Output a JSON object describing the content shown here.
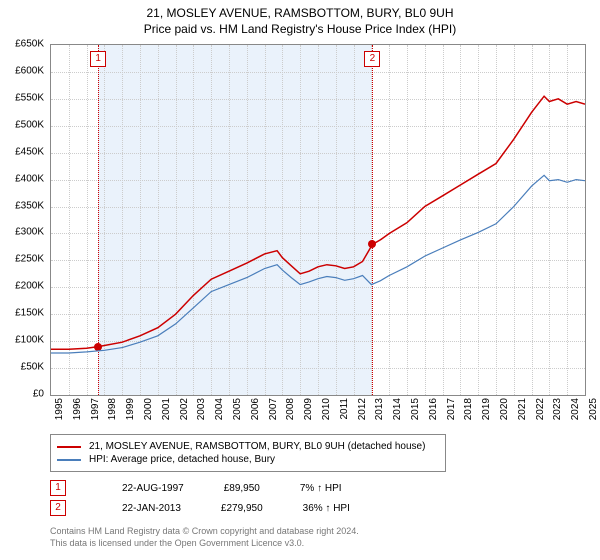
{
  "title_line1": "21, MOSLEY AVENUE, RAMSBOTTOM, BURY, BL0 9UH",
  "title_line2": "Price paid vs. HM Land Registry's House Price Index (HPI)",
  "chart": {
    "type": "line",
    "background_color": "#ffffff",
    "border_color": "#888888",
    "grid_color": "#cccccc",
    "grid_dotted": true,
    "plot_background_band": {
      "from_year": 1997.65,
      "to_year": 2013.06,
      "color": "#eaf2fb"
    },
    "x": {
      "min": 1995,
      "max": 2025,
      "tick_step": 1,
      "tick_rotation_deg": -90,
      "font_size": 10
    },
    "y": {
      "min": 0,
      "max": 650000,
      "tick_step": 50000,
      "format_prefix": "£",
      "format_suffix": "K",
      "format_divisor": 1000,
      "font_size": 10
    },
    "series": [
      {
        "name": "21, MOSLEY AVENUE, RAMSBOTTOM, BURY, BL0 9UH (detached house)",
        "color": "#cc0000",
        "line_width": 1.5,
        "points": [
          [
            1995,
            85000
          ],
          [
            1996,
            85000
          ],
          [
            1997,
            87000
          ],
          [
            1997.65,
            89950
          ],
          [
            1998,
            92000
          ],
          [
            1999,
            98000
          ],
          [
            2000,
            110000
          ],
          [
            2001,
            125000
          ],
          [
            2002,
            150000
          ],
          [
            2003,
            185000
          ],
          [
            2004,
            215000
          ],
          [
            2005,
            230000
          ],
          [
            2006,
            245000
          ],
          [
            2007,
            262000
          ],
          [
            2007.7,
            268000
          ],
          [
            2008,
            255000
          ],
          [
            2008.5,
            240000
          ],
          [
            2009,
            225000
          ],
          [
            2009.5,
            230000
          ],
          [
            2010,
            238000
          ],
          [
            2010.5,
            242000
          ],
          [
            2011,
            240000
          ],
          [
            2011.5,
            235000
          ],
          [
            2012,
            238000
          ],
          [
            2012.5,
            248000
          ],
          [
            2013.06,
            279950
          ],
          [
            2013.5,
            288000
          ],
          [
            2014,
            300000
          ],
          [
            2015,
            320000
          ],
          [
            2016,
            350000
          ],
          [
            2017,
            370000
          ],
          [
            2018,
            390000
          ],
          [
            2019,
            410000
          ],
          [
            2020,
            430000
          ],
          [
            2021,
            475000
          ],
          [
            2022,
            525000
          ],
          [
            2022.7,
            555000
          ],
          [
            2023,
            545000
          ],
          [
            2023.5,
            550000
          ],
          [
            2024,
            540000
          ],
          [
            2024.5,
            545000
          ],
          [
            2025,
            540000
          ]
        ]
      },
      {
        "name": "HPI: Average price, detached house, Bury",
        "color": "#4a7ebb",
        "line_width": 1.2,
        "points": [
          [
            1995,
            78000
          ],
          [
            1996,
            78000
          ],
          [
            1997,
            80000
          ],
          [
            1998,
            83000
          ],
          [
            1999,
            88000
          ],
          [
            2000,
            98000
          ],
          [
            2001,
            110000
          ],
          [
            2002,
            132000
          ],
          [
            2003,
            162000
          ],
          [
            2004,
            192000
          ],
          [
            2005,
            205000
          ],
          [
            2006,
            218000
          ],
          [
            2007,
            235000
          ],
          [
            2007.7,
            242000
          ],
          [
            2008,
            232000
          ],
          [
            2008.5,
            218000
          ],
          [
            2009,
            205000
          ],
          [
            2009.5,
            210000
          ],
          [
            2010,
            216000
          ],
          [
            2010.5,
            220000
          ],
          [
            2011,
            218000
          ],
          [
            2011.5,
            213000
          ],
          [
            2012,
            216000
          ],
          [
            2012.5,
            222000
          ],
          [
            2013,
            205000
          ],
          [
            2013.5,
            212000
          ],
          [
            2014,
            222000
          ],
          [
            2015,
            238000
          ],
          [
            2016,
            258000
          ],
          [
            2017,
            273000
          ],
          [
            2018,
            288000
          ],
          [
            2019,
            302000
          ],
          [
            2020,
            318000
          ],
          [
            2021,
            350000
          ],
          [
            2022,
            388000
          ],
          [
            2022.7,
            408000
          ],
          [
            2023,
            398000
          ],
          [
            2023.5,
            400000
          ],
          [
            2024,
            395000
          ],
          [
            2024.5,
            400000
          ],
          [
            2025,
            398000
          ]
        ]
      }
    ],
    "sale_markers": [
      {
        "label": "1",
        "year": 1997.65,
        "price": 89950,
        "dot_color": "#cc0000"
      },
      {
        "label": "2",
        "year": 2013.06,
        "price": 279950,
        "dot_color": "#cc0000"
      }
    ]
  },
  "legend": {
    "border_color": "#888888",
    "font_size": 10,
    "items": [
      {
        "color": "#cc0000",
        "label": "21, MOSLEY AVENUE, RAMSBOTTOM, BURY, BL0 9UH (detached house)"
      },
      {
        "color": "#4a7ebb",
        "label": "HPI: Average price, detached house, Bury"
      }
    ]
  },
  "sale_rows": [
    {
      "badge": "1",
      "date": "22-AUG-1997",
      "price": "£89,950",
      "delta": "7% ↑ HPI"
    },
    {
      "badge": "2",
      "date": "22-JAN-2013",
      "price": "£279,950",
      "delta": "36% ↑ HPI"
    }
  ],
  "footer_line1": "Contains HM Land Registry data © Crown copyright and database right 2024.",
  "footer_line2": "This data is licensed under the Open Government Licence v3.0."
}
